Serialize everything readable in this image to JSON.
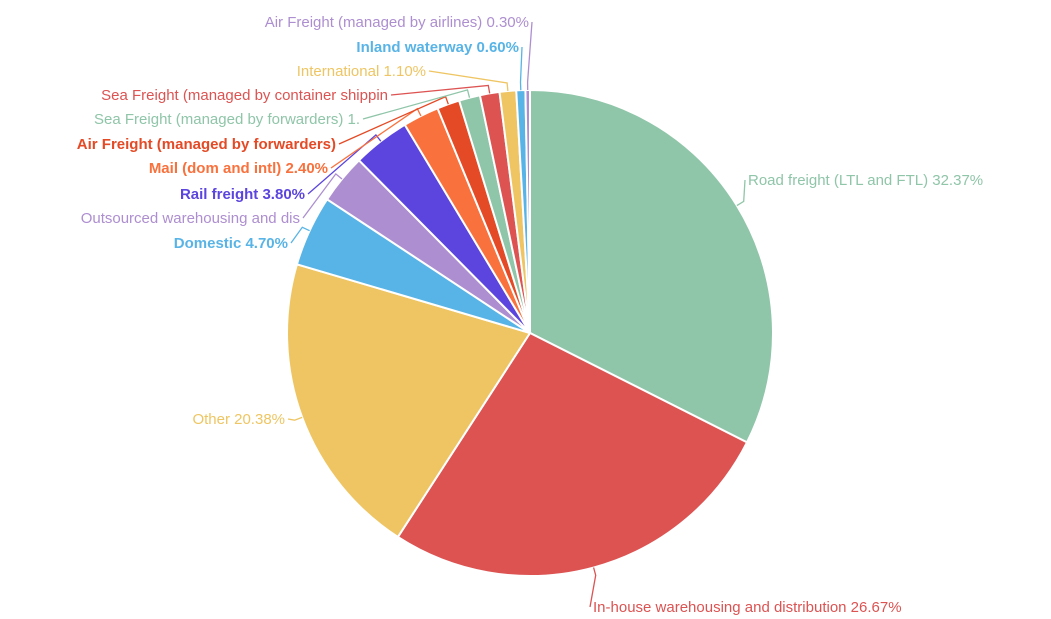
{
  "chart_data": {
    "type": "pie",
    "title": "",
    "legend": "none",
    "slices": [
      {
        "name": "Road freight (LTL and FTL)",
        "value": 32.37,
        "label": "Road freight (LTL and FTL) 32.37%",
        "color": "#8fc5a8"
      },
      {
        "name": "In-house warehousing and distribution",
        "value": 26.67,
        "label": "In-house warehousing and distribution 26.67%",
        "color": "#dc5352"
      },
      {
        "name": "Other",
        "value": 20.38,
        "label": "Other 20.38%",
        "color": "#eec562"
      },
      {
        "name": "Domestic",
        "value": 4.7,
        "label": "Domestic 4.70%",
        "color": "#58b4e6"
      },
      {
        "name": "Outsourced warehousing and dis",
        "value": 3.3,
        "label": "Outsourced warehousing and dis",
        "color": "#ad8ed0"
      },
      {
        "name": "Rail freight",
        "value": 3.8,
        "label": "Rail freight 3.80%",
        "color": "#5b45de"
      },
      {
        "name": "Mail (dom and intl)",
        "value": 2.4,
        "label": "Mail (dom and intl) 2.40%",
        "color": "#f9713c"
      },
      {
        "name": "Air Freight (managed by forwarders)",
        "value": 1.5,
        "label": "Air Freight (managed by forwarders)",
        "color": "#e44a25"
      },
      {
        "name": "Sea Freight (managed by forwarders)",
        "value": 1.4,
        "label": "Sea Freight (managed by forwarders) 1.",
        "color": "#8fc5a8"
      },
      {
        "name": "Sea Freight (managed by container shippin",
        "value": 1.3,
        "label": "Sea Freight (managed by container shippin",
        "color": "#dc5352"
      },
      {
        "name": "International",
        "value": 1.1,
        "label": "International 1.10%",
        "color": "#eec562"
      },
      {
        "name": "Inland waterway",
        "value": 0.6,
        "label": "Inland waterway 0.60%",
        "color": "#58b4e6"
      },
      {
        "name": "Air Freight (managed by airlines)",
        "value": 0.3,
        "label": "Air Freight (managed by airlines) 0.30%",
        "color": "#ad8ed0"
      }
    ]
  }
}
